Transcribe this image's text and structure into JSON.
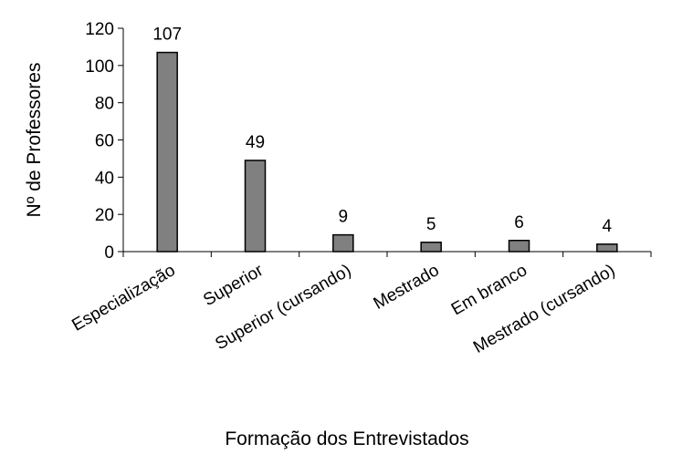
{
  "chart_data": {
    "type": "bar",
    "title": "",
    "xlabel": "Formação dos Entrevistados",
    "ylabel": "Nº de Professores",
    "ylim": [
      0,
      120
    ],
    "yticks": [
      0,
      20,
      40,
      60,
      80,
      100,
      120
    ],
    "categories": [
      "Especialização",
      "Superior",
      "Superior (cursando)",
      "Mestrado",
      "Em branco",
      "Mestrado (cursando)"
    ],
    "values": [
      107,
      49,
      9,
      5,
      6,
      4
    ],
    "bar_color": "#808080",
    "grid": false,
    "legend": "none"
  }
}
